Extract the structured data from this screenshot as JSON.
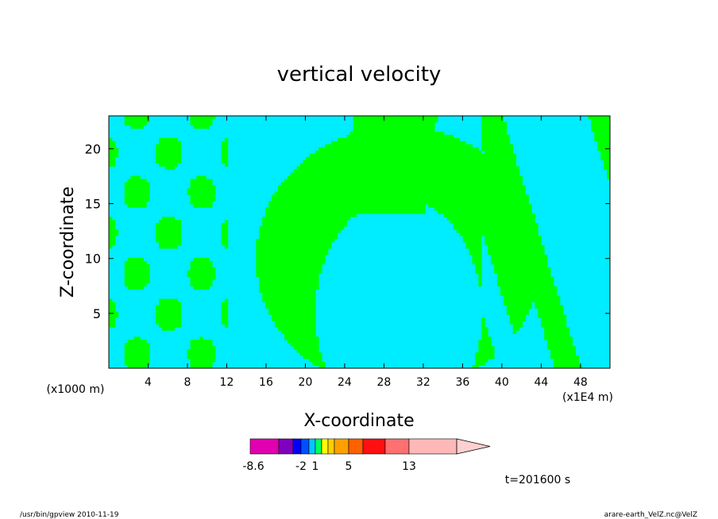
{
  "chart_data": {
    "type": "heatmap",
    "title": "vertical velocity",
    "xlabel": "X-coordinate",
    "ylabel": "Z-coordinate",
    "x_unit_left": "(x1000 m)",
    "x_unit_right": "(x1E4 m)",
    "xlim": [
      0,
      51
    ],
    "ylim": [
      0,
      23
    ],
    "x_ticks": [
      "4",
      "8",
      "12",
      "16",
      "20",
      "24",
      "28",
      "32",
      "36",
      "40",
      "44",
      "48"
    ],
    "x_tick_values": [
      4,
      8,
      12,
      16,
      20,
      24,
      28,
      32,
      36,
      40,
      44,
      48
    ],
    "y_ticks": [
      "5",
      "10",
      "15",
      "20"
    ],
    "y_tick_values": [
      5,
      10,
      15,
      20
    ],
    "grid": false,
    "legend": "colorbar-bottom",
    "colorbar": {
      "labels": [
        "-8.6",
        "-2",
        "1",
        "5",
        "13"
      ],
      "colors": [
        "#e000b0",
        "#8000c0",
        "#0000ff",
        "#0050ff",
        "#00c8ff",
        "#00ff60",
        "#ffff00",
        "#ffd000",
        "#ffa000",
        "#ff6000",
        "#ff1010",
        "#ff7070",
        "#ffb8b8",
        "#ffd0d0"
      ],
      "extend": "right"
    },
    "fill_colors": {
      "positive": "#00ff00",
      "negative": "#00ecff"
    },
    "contour_levels": [
      0
    ],
    "time_label": "t=201600 s"
  },
  "footer": {
    "left": "/usr/bin/gpview   2010-11-19",
    "right": "arare-earth_VelZ.nc@VelZ"
  }
}
